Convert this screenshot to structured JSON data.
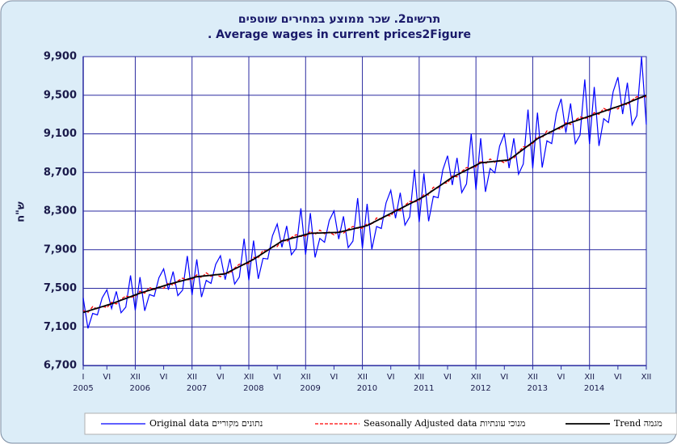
{
  "chart_data": {
    "type": "line",
    "title": "תרשים2. שכר ממוצע במחירים שוטפים",
    "subtitle": ". Average wages in current prices2Figure",
    "y_label": "ש\"ח",
    "categories": [
      "I",
      null,
      null,
      null,
      null,
      "VI",
      null,
      null,
      null,
      null,
      null,
      "XII",
      null,
      null,
      null,
      null,
      null,
      "VI",
      null,
      null,
      null,
      null,
      null,
      "XII",
      null,
      null,
      null,
      null,
      null,
      "VI",
      null,
      null,
      null,
      null,
      null,
      "XII",
      null,
      null,
      null,
      null,
      null,
      "VI",
      null,
      null,
      null,
      null,
      null,
      "XII",
      null,
      null,
      null,
      null,
      null,
      "VI",
      null,
      null,
      null,
      null,
      null,
      "XII",
      null,
      null,
      null,
      null,
      null,
      "VI",
      null,
      null,
      null,
      null,
      null,
      "XII",
      null,
      null,
      null,
      null,
      null,
      "VI",
      null,
      null,
      null,
      null,
      null,
      "XII",
      null,
      null,
      null,
      null,
      null,
      "VI",
      null,
      null,
      null,
      null,
      null,
      "XII",
      null,
      null,
      null,
      null,
      null,
      "VI",
      null,
      null,
      null,
      null,
      null,
      "XII",
      null,
      null,
      null,
      null,
      null,
      "VI",
      null,
      null,
      null,
      null,
      null,
      "XII"
    ],
    "years": [
      "2005",
      "2006",
      "2007",
      "2008",
      "2009",
      "2010",
      "2011",
      "2012",
      "2013",
      "2014"
    ],
    "ylim": [
      6700,
      9900
    ],
    "yticks": [
      {
        "value": 6700,
        "label": "6,700"
      },
      {
        "value": 7100,
        "label": "7,100"
      },
      {
        "value": 7500,
        "label": "7,500"
      },
      {
        "value": 7900,
        "label": "7,900"
      },
      {
        "value": 8300,
        "label": "8,300"
      },
      {
        "value": 8700,
        "label": "8,700"
      },
      {
        "value": 9100,
        "label": "9,100"
      },
      {
        "value": 9500,
        "label": "9,500"
      },
      {
        "value": 9900,
        "label": "9,900"
      }
    ],
    "grid": true,
    "series": [
      {
        "name": "Original data  נתונים מקוריים",
        "color": "#0000ff",
        "values": [
          7400,
          7085,
          7240,
          7225,
          7400,
          7485,
          7290,
          7468,
          7247,
          7305,
          7633,
          7272,
          7615,
          7267,
          7436,
          7418,
          7609,
          7701,
          7485,
          7674,
          7424,
          7481,
          7835,
          7431,
          7800,
          7409,
          7582,
          7551,
          7748,
          7837,
          7590,
          7807,
          7544,
          7617,
          8014,
          7583,
          7995,
          7598,
          7811,
          7804,
          8044,
          8166,
          7925,
          8146,
          7848,
          7913,
          8329,
          7849,
          8280,
          7820,
          8017,
          7977,
          8203,
          8302,
          8010,
          8246,
          7921,
          7989,
          8435,
          7914,
          8375,
          7905,
          8140,
          8120,
          8385,
          8515,
          8225,
          8490,
          8155,
          8240,
          8730,
          8185,
          8690,
          8195,
          8453,
          8438,
          8727,
          8873,
          8570,
          8851,
          8492,
          8581,
          9102,
          8519,
          9055,
          8499,
          8742,
          8696,
          8973,
          9097,
          8745,
          9054,
          8682,
          8787,
          9351,
          8741,
          9320,
          8751,
          9028,
          8999,
          9312,
          9463,
          9110,
          9415,
          8999,
          9088,
          9663,
          8995,
          9585,
          8975,
          9257,
          9217,
          9538,
          9687,
          9305,
          9629,
          9193,
          9289,
          9898,
          9196
        ]
      },
      {
        "name": "Seasonally Adjusted data  מנוכי עונתיות",
        "color": "#ff0000",
        "values": [
          7270,
          7250,
          7310,
          7285,
          7315,
          7300,
          7355,
          7338,
          7387,
          7420,
          7408,
          7417,
          7470,
          7450,
          7510,
          7485,
          7515,
          7500,
          7555,
          7533,
          7577,
          7605,
          7588,
          7592,
          7640,
          7610,
          7660,
          7625,
          7645,
          7620,
          7665,
          7655,
          7710,
          7750,
          7745,
          7760,
          7820,
          7817,
          7893,
          7885,
          7932,
          7933,
          8005,
          7983,
          8027,
          8055,
          8038,
          8042,
          8090,
          8057,
          8103,
          8065,
          8082,
          8053,
          8095,
          8072,
          8113,
          8140,
          8122,
          8123,
          8170,
          8160,
          8230,
          8215,
          8255,
          8250,
          8315,
          8305,
          8360,
          8400,
          8395,
          8410,
          8470,
          8468,
          8547,
          8540,
          8588,
          8592,
          8665,
          8655,
          8710,
          8750,
          8745,
          8760,
          8820,
          8790,
          8840,
          8805,
          8825,
          8800,
          8845,
          8847,
          8913,
          8965,
          8972,
          8998,
          9070,
          9060,
          9130,
          9115,
          9155,
          9150,
          9215,
          9197,
          9243,
          9275,
          9262,
          9268,
          9320,
          9302,
          9363,
          9340,
          9372,
          9358,
          9415,
          9400,
          9450,
          9485,
          9475,
          9485
        ]
      },
      {
        "name": "Trend  מגמה",
        "color": "#000000",
        "values": [
          7250,
          7265,
          7280,
          7295,
          7310,
          7325,
          7340,
          7358,
          7377,
          7395,
          7413,
          7432,
          7450,
          7465,
          7480,
          7495,
          7510,
          7525,
          7540,
          7553,
          7567,
          7580,
          7593,
          7607,
          7620,
          7625,
          7630,
          7635,
          7640,
          7645,
          7650,
          7675,
          7700,
          7725,
          7750,
          7775,
          7800,
          7832,
          7863,
          7895,
          7927,
          7958,
          7990,
          8003,
          8017,
          8030,
          8043,
          8057,
          8070,
          8072,
          8073,
          8075,
          8077,
          8078,
          8080,
          8092,
          8103,
          8115,
          8127,
          8138,
          8150,
          8175,
          8200,
          8225,
          8250,
          8275,
          8300,
          8325,
          8350,
          8375,
          8400,
          8425,
          8450,
          8483,
          8517,
          8550,
          8583,
          8617,
          8650,
          8675,
          8700,
          8725,
          8750,
          8775,
          8800,
          8805,
          8810,
          8815,
          8820,
          8825,
          8830,
          8867,
          8903,
          8940,
          8977,
          9013,
          9050,
          9075,
          9100,
          9125,
          9150,
          9175,
          9200,
          9217,
          9233,
          9250,
          9267,
          9283,
          9300,
          9317,
          9333,
          9350,
          9367,
          9383,
          9400,
          9420,
          9440,
          9460,
          9480,
          9500
        ]
      }
    ]
  }
}
